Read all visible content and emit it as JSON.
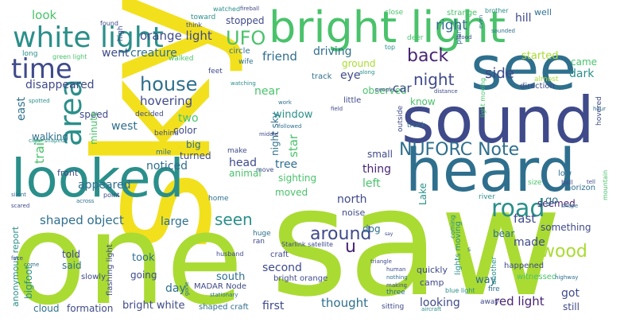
{
  "palette": {
    "yellow": "#f2e01d",
    "lime": "#aadb33",
    "green": "#4ac26b",
    "teal": "#2a8f8a",
    "blue": "#2f6f8e",
    "indigo": "#3f4a8a",
    "purple": "#482475"
  },
  "words": [
    {
      "text": "sky"
    },
    {
      "text": "saw"
    },
    {
      "text": "one"
    },
    {
      "text": "looked"
    },
    {
      "text": "sound"
    },
    {
      "text": "heard"
    },
    {
      "text": "see"
    },
    {
      "text": "bright light"
    },
    {
      "text": "white light"
    },
    {
      "text": "time"
    },
    {
      "text": "area"
    },
    {
      "text": "house"
    },
    {
      "text": "UFO"
    },
    {
      "text": "NUFORC Note"
    },
    {
      "text": "road"
    },
    {
      "text": "wood"
    },
    {
      "text": "back"
    },
    {
      "text": "night"
    },
    {
      "text": "around"
    },
    {
      "text": "seen"
    },
    {
      "text": "look"
    },
    {
      "text": "orange light"
    },
    {
      "text": "creature"
    },
    {
      "text": "went"
    },
    {
      "text": "friend"
    },
    {
      "text": "right"
    },
    {
      "text": "stopped"
    },
    {
      "text": "driving"
    },
    {
      "text": "ground"
    },
    {
      "text": "eye"
    },
    {
      "text": "observed"
    },
    {
      "text": "side"
    },
    {
      "text": "started"
    },
    {
      "text": "came"
    },
    {
      "text": "dark"
    },
    {
      "text": "disappeared"
    },
    {
      "text": "east"
    },
    {
      "text": "hovering"
    },
    {
      "text": "west"
    },
    {
      "text": "speed"
    },
    {
      "text": "minute"
    },
    {
      "text": "two"
    },
    {
      "text": "color"
    },
    {
      "text": "noticed"
    },
    {
      "text": "big"
    },
    {
      "text": "turned"
    },
    {
      "text": "trail"
    },
    {
      "text": "appeared"
    },
    {
      "text": "front"
    },
    {
      "text": "head"
    },
    {
      "text": "animal"
    },
    {
      "text": "tree"
    },
    {
      "text": "thing"
    },
    {
      "text": "star"
    },
    {
      "text": "sighting"
    },
    {
      "text": "left"
    },
    {
      "text": "night sky"
    },
    {
      "text": "window"
    },
    {
      "text": "near"
    },
    {
      "text": "car"
    },
    {
      "text": "know"
    },
    {
      "text": "little"
    },
    {
      "text": "north"
    },
    {
      "text": "moved"
    },
    {
      "text": "Lake"
    },
    {
      "text": "shaped object"
    },
    {
      "text": "large"
    },
    {
      "text": "noise"
    },
    {
      "text": "dog"
    },
    {
      "text": "u"
    },
    {
      "text": "seemed"
    },
    {
      "text": "fast"
    },
    {
      "text": "something"
    },
    {
      "text": "made"
    },
    {
      "text": "go"
    },
    {
      "text": "bear"
    },
    {
      "text": "second"
    },
    {
      "text": "south"
    },
    {
      "text": "took"
    },
    {
      "text": "told"
    },
    {
      "text": "said"
    },
    {
      "text": "going"
    },
    {
      "text": "day"
    },
    {
      "text": "bigfoot"
    },
    {
      "text": "cloud"
    },
    {
      "text": "formation"
    },
    {
      "text": "bright white"
    },
    {
      "text": "shaped craft"
    },
    {
      "text": "first"
    },
    {
      "text": "thought"
    },
    {
      "text": "looking"
    },
    {
      "text": "red light"
    },
    {
      "text": "got"
    },
    {
      "text": "way"
    },
    {
      "text": "still"
    },
    {
      "text": "walking"
    },
    {
      "text": "anonymous report"
    },
    {
      "text": "flashing light"
    },
    {
      "text": "small"
    },
    {
      "text": "craft"
    },
    {
      "text": "bright orange"
    },
    {
      "text": "camp"
    },
    {
      "text": "lights moving"
    },
    {
      "text": "quickly"
    },
    {
      "text": "hill"
    },
    {
      "text": "well"
    },
    {
      "text": "strange"
    },
    {
      "text": "watched"
    },
    {
      "text": "fireball"
    },
    {
      "text": "close"
    },
    {
      "text": "brother"
    },
    {
      "text": "toward"
    },
    {
      "text": "think"
    },
    {
      "text": "found"
    },
    {
      "text": "high"
    },
    {
      "text": "long"
    },
    {
      "text": "green light"
    },
    {
      "text": "walked"
    },
    {
      "text": "circle"
    },
    {
      "text": "wife"
    },
    {
      "text": "deer"
    },
    {
      "text": "top"
    },
    {
      "text": "plane"
    },
    {
      "text": "feet"
    },
    {
      "text": "track"
    },
    {
      "text": "decided"
    },
    {
      "text": "behind"
    },
    {
      "text": "make"
    },
    {
      "text": "mile"
    },
    {
      "text": "home"
    },
    {
      "text": "huge"
    },
    {
      "text": "ran"
    },
    {
      "text": "river"
    },
    {
      "text": "horizon"
    },
    {
      "text": "low"
    },
    {
      "text": "ball"
    },
    {
      "text": "size"
    },
    {
      "text": "direction"
    },
    {
      "text": "almost"
    },
    {
      "text": "hovered"
    },
    {
      "text": "mountain"
    },
    {
      "text": "outside"
    },
    {
      "text": "truck"
    },
    {
      "text": "people"
    },
    {
      "text": "distance"
    },
    {
      "text": "light moving"
    },
    {
      "text": "happened"
    },
    {
      "text": "witnessed"
    },
    {
      "text": "another"
    },
    {
      "text": "fire"
    },
    {
      "text": "away"
    },
    {
      "text": "sitting"
    },
    {
      "text": "three"
    },
    {
      "text": "blue light"
    },
    {
      "text": "husband"
    },
    {
      "text": "slowly"
    },
    {
      "text": "gone"
    },
    {
      "text": "MADAR Node"
    },
    {
      "text": "Starlink satellite"
    },
    {
      "text": "point"
    },
    {
      "text": "across"
    },
    {
      "text": "cigar shaped"
    },
    {
      "text": "spotted"
    },
    {
      "text": "silent"
    },
    {
      "text": "scared"
    },
    {
      "text": "face"
    },
    {
      "text": "coming"
    },
    {
      "text": "nothing"
    },
    {
      "text": "making"
    },
    {
      "text": "human"
    },
    {
      "text": "aircraft"
    },
    {
      "text": "highway"
    },
    {
      "text": "stationary"
    },
    {
      "text": "triangle"
    },
    {
      "text": "shape"
    },
    {
      "text": "tell"
    },
    {
      "text": "sounded"
    },
    {
      "text": "stood"
    },
    {
      "text": "even"
    },
    {
      "text": "hour"
    },
    {
      "text": "along"
    },
    {
      "text": "watching"
    },
    {
      "text": "followed"
    },
    {
      "text": "field"
    },
    {
      "text": "work"
    },
    {
      "text": "middle"
    },
    {
      "text": "move"
    },
    {
      "text": "s"
    },
    {
      "text": "say"
    },
    {
      "text": "come"
    }
  ]
}
